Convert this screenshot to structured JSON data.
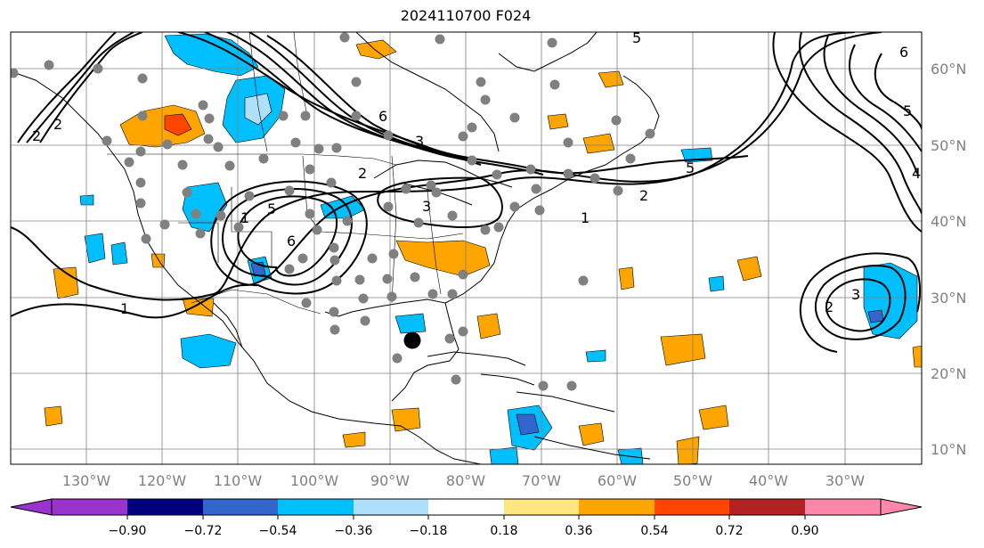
{
  "title": "2024110700 F024",
  "map": {
    "lat_labels": [
      "60°N",
      "50°N",
      "40°N",
      "30°N",
      "20°N",
      "10°N"
    ],
    "lon_labels": [
      "130°W",
      "120°W",
      "110°W",
      "100°W",
      "90°W",
      "80°W",
      "70°W",
      "60°W",
      "50°W",
      "40°W",
      "30°W"
    ],
    "contour_labels": [
      "2",
      "2",
      "1",
      "1",
      "6",
      "3",
      "2",
      "3",
      "6",
      "5",
      "1",
      "2",
      "5",
      "5",
      "2",
      "3",
      "6",
      "5",
      "4"
    ],
    "colors": {
      "contour": "#000000",
      "grid": "#808080",
      "coast": "#000000",
      "station_marker": "#808080",
      "center_marker": "#000000"
    }
  },
  "colorbar": {
    "ticks": [
      "−0.90",
      "−0.72",
      "−0.54",
      "−0.36",
      "−0.18",
      "0.18",
      "0.36",
      "0.54",
      "0.72",
      "0.90"
    ],
    "colors": [
      "#9933cc",
      "#00007f",
      "#3366cc",
      "#00bfff",
      "#aee0fb",
      "#ffffff",
      "#ffe680",
      "#ffa500",
      "#ff4500",
      "#b22222",
      "#ff88aa"
    ]
  }
}
